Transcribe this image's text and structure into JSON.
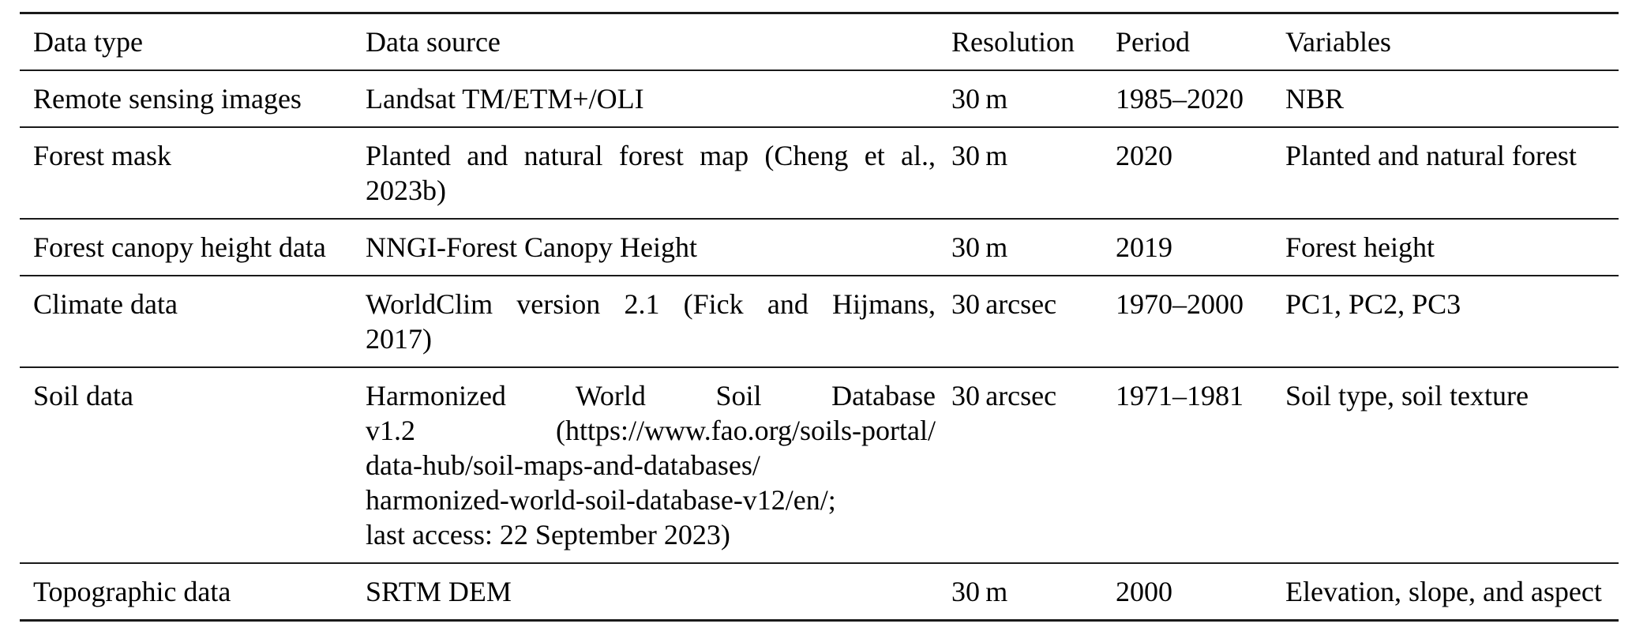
{
  "colors": {
    "text": "#000000",
    "rule": "#1a1a1a",
    "bg": "#ffffff"
  },
  "table": {
    "name": "data-sources-table",
    "columns": [
      {
        "label": "Data type"
      },
      {
        "label": "Data source"
      },
      {
        "label": "Resolution"
      },
      {
        "label": "Period"
      },
      {
        "label": "Variables"
      }
    ],
    "rows": [
      {
        "data_type": "Remote sensing images",
        "source_lines": [
          {
            "text": "Landsat TM/ETM+/OLI",
            "justify": false
          }
        ],
        "resolution": "30 m",
        "period": "1985–2020",
        "variables": "NBR"
      },
      {
        "data_type": "Forest mask",
        "source_lines": [
          {
            "text": "Planted and natural forest map (Cheng et al.,",
            "justify": true
          },
          {
            "text": "2023b)",
            "justify": false
          }
        ],
        "resolution": "30 m",
        "period": "2020",
        "variables": "Planted and natural forest"
      },
      {
        "data_type": "Forest canopy height data",
        "source_lines": [
          {
            "text": "NNGI-Forest Canopy Height",
            "justify": false
          }
        ],
        "resolution": "30 m",
        "period": "2019",
        "variables": "Forest height"
      },
      {
        "data_type": "Climate data",
        "source_lines": [
          {
            "text": "WorldClim version 2.1 (Fick and Hijmans,",
            "justify": true
          },
          {
            "text": "2017)",
            "justify": false
          }
        ],
        "resolution": "30 arcsec",
        "period": "1970–2000",
        "variables": "PC1, PC2, PC3"
      },
      {
        "data_type": "Soil data",
        "source_lines": [
          {
            "text": "Harmonized World Soil Database",
            "justify": true
          },
          {
            "text": "v1.2 (https://www.fao.org/soils-portal/",
            "justify": true
          },
          {
            "text": "data-hub/soil-maps-and-databases/",
            "justify": false
          },
          {
            "text": "harmonized-world-soil-database-v12/en/;",
            "justify": false
          },
          {
            "text": "last access: 22 September 2023)",
            "justify": false
          }
        ],
        "resolution": "30 arcsec",
        "period": "1971–1981",
        "variables": "Soil type, soil texture"
      },
      {
        "data_type": "Topographic data",
        "source_lines": [
          {
            "text": "SRTM DEM",
            "justify": false
          }
        ],
        "resolution": "30 m",
        "period": "2000",
        "variables": "Elevation, slope, and aspect"
      }
    ]
  }
}
